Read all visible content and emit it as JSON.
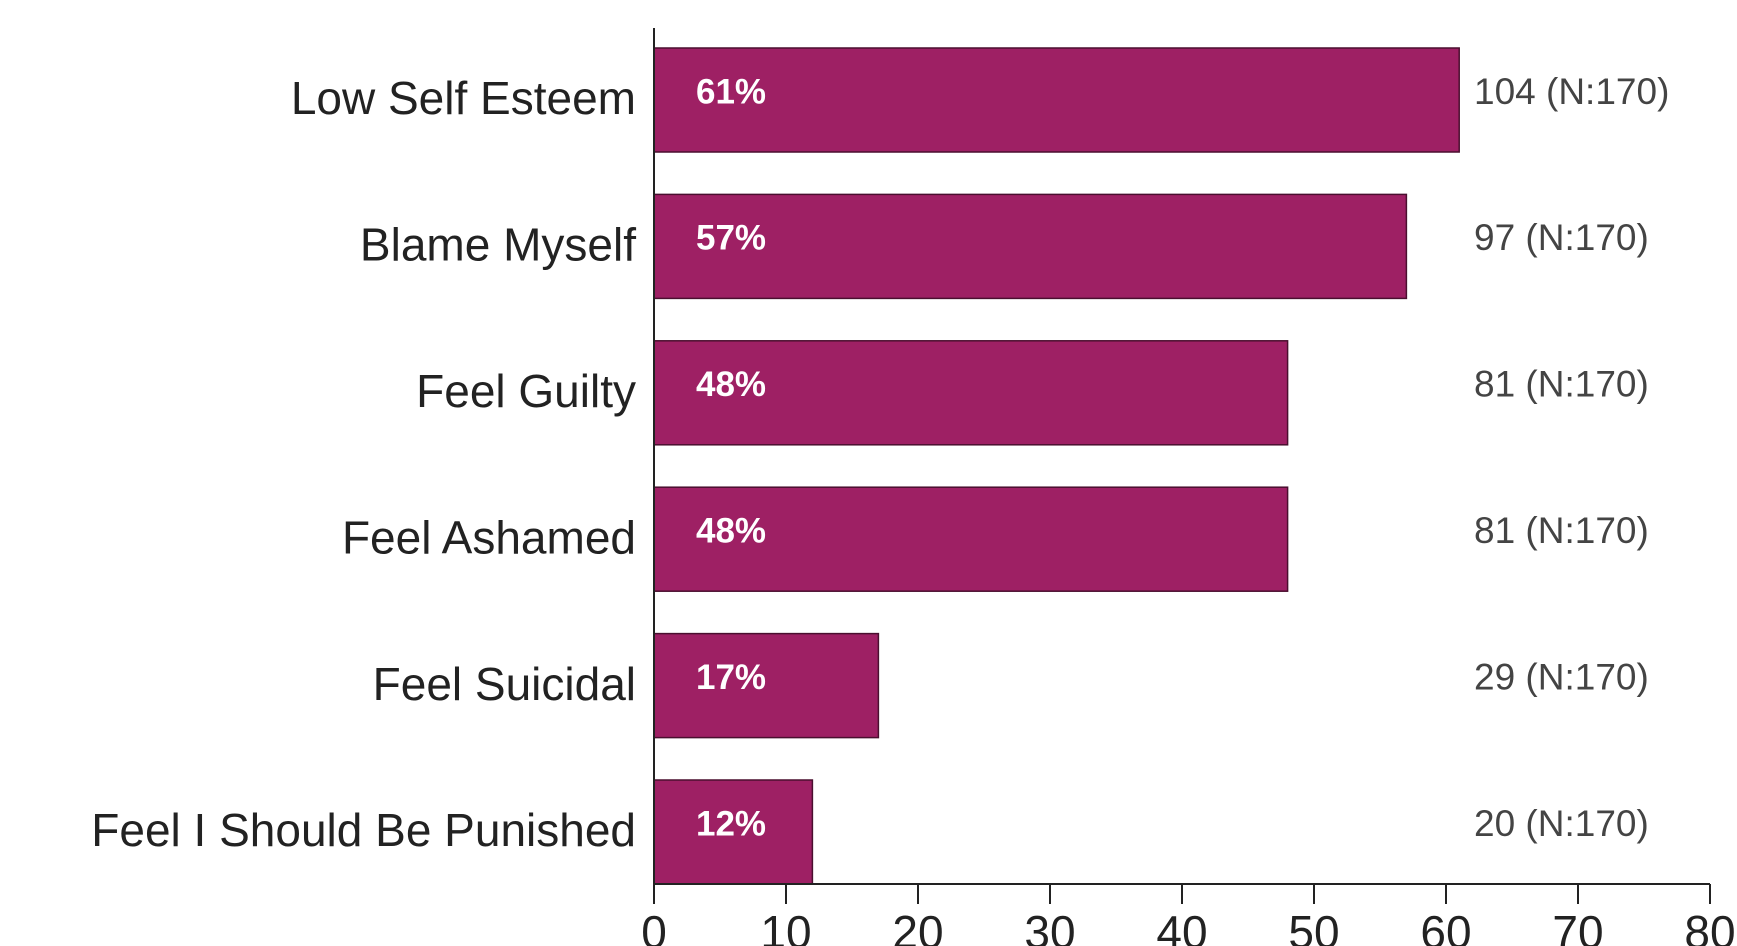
{
  "chart_data": {
    "type": "bar",
    "orientation": "horizontal",
    "categories": [
      "Low Self Esteem",
      "Blame Myself",
      "Feel Guilty",
      "Feel Ashamed",
      "Feel Suicidal",
      "Feel I Should Be Punished"
    ],
    "values": [
      61,
      57,
      48,
      48,
      17,
      12
    ],
    "value_labels": [
      "61%",
      "57%",
      "48%",
      "48%",
      "17%",
      "12%"
    ],
    "annotations": [
      "104 (N:170)",
      "97 (N:170)",
      "81 (N:170)",
      "81 (N:170)",
      "29 (N:170)",
      "20 (N:170)"
    ],
    "color": "#9e2064",
    "xlim": [
      0,
      80
    ],
    "xticks": [
      0,
      10,
      20,
      30,
      40,
      50,
      60,
      70,
      80
    ]
  }
}
